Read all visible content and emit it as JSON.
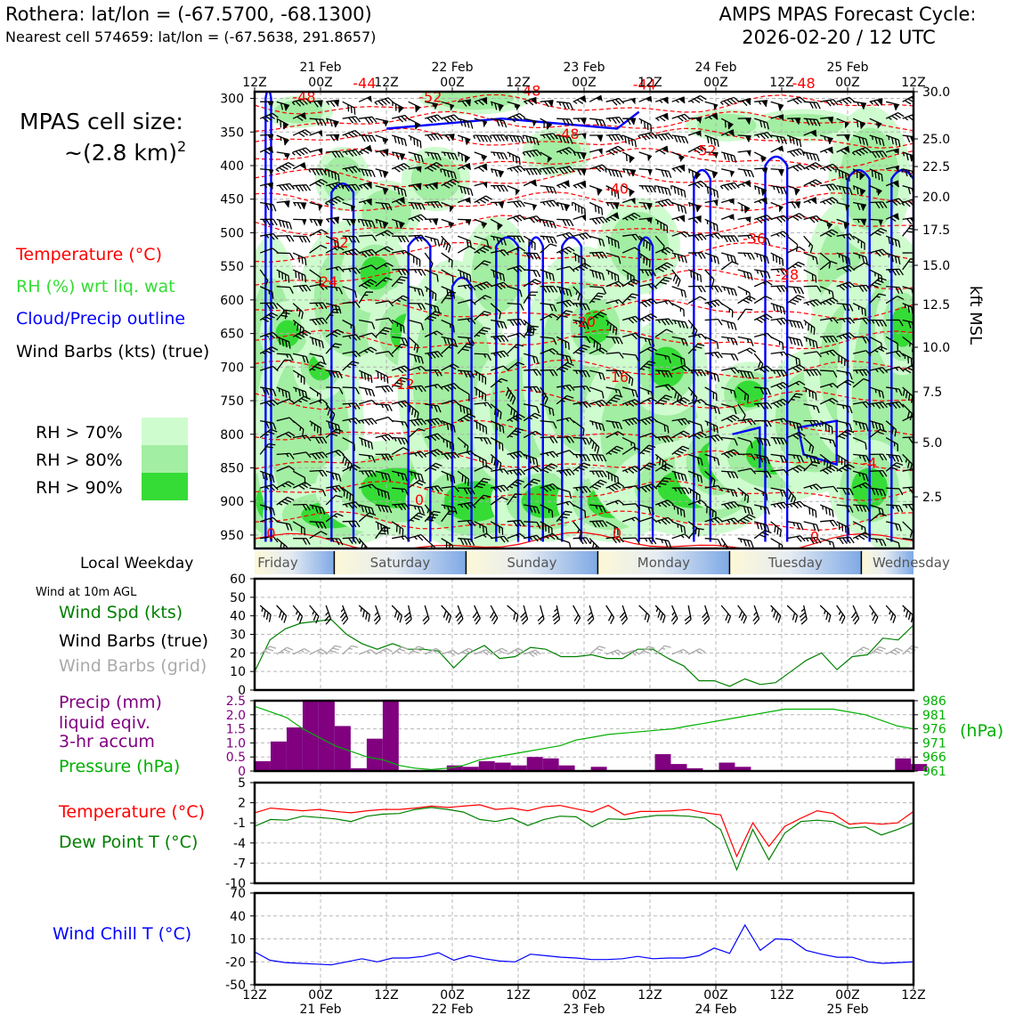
{
  "header": {
    "station_line": "Rothera: lat/lon = (-67.5700, -68.1300)",
    "cell_line": "Nearest cell 574659: lat/lon = (-67.5638, 291.8657)",
    "cycle_line1": "AMPS MPAS Forecast Cycle:",
    "cycle_line2": "2026-02-20 / 12 UTC"
  },
  "legend": {
    "cell_size_1": "MPAS cell size:",
    "cell_size_2": "~(2.8 km)",
    "cell_size_exp": "2",
    "temperature": "Temperature (°C)",
    "rh": "RH (%) wrt liq. wat",
    "cloud": "Cloud/Precip outline",
    "barbs": "Wind Barbs (kts) (true)",
    "rh70": "RH > 70%",
    "rh80": "RH > 80%",
    "rh90": "RH > 90%"
  },
  "colors": {
    "rh70": "#cffccf",
    "rh80": "#a2eea2",
    "rh90": "#36dc36",
    "temp": "#ff0000",
    "cloud": "#0000ff",
    "precip": "#800080",
    "pressure": "#00b000",
    "wind_spd": "#008000",
    "grid_barb": "#aaaaaa",
    "dew": "#008000",
    "chill": "#0000ff"
  },
  "time_axis": {
    "ticks": [
      "12Z",
      "00Z",
      "12Z",
      "00Z",
      "12Z",
      "00Z",
      "12Z",
      "00Z",
      "12Z",
      "00Z",
      "12Z"
    ],
    "dates": [
      "21 Feb",
      "22 Feb",
      "23 Feb",
      "24 Feb",
      "25 Feb"
    ]
  },
  "weekday": {
    "label": "Local Weekday",
    "days": [
      "Friday",
      "Saturday",
      "Sunday",
      "Monday",
      "Tuesday",
      "Wednesday"
    ]
  },
  "wind10m_label": "Wind at 10m AGL",
  "right_axis_label": "kft MSL",
  "pressure_unit": "(hPa)",
  "panel_labels": {
    "wind_spd": "Wind Spd (kts)",
    "wind_true": "Wind Barbs (true)",
    "wind_grid": "Wind Barbs (grid)",
    "precip1": "Precip (mm)",
    "precip2": "liquid eqiv.",
    "precip3": "3-hr accum",
    "pressure": "Pressure (hPa)",
    "temp": "Temperature (°C)",
    "dew": "Dew Point T (°C)",
    "chill": "Wind Chill T (°C)"
  },
  "chart_data": [
    {
      "type": "heatmap",
      "x_label": "",
      "y_ticks_hpa": [
        "300",
        "350",
        "400",
        "450",
        "500",
        "550",
        "600",
        "650",
        "700",
        "750",
        "800",
        "850",
        "900",
        "950"
      ],
      "right_ticks_kft": [
        "30.0",
        "25.0",
        "22.5",
        "20.0",
        "17.5",
        "15.0",
        "12.5",
        "10.0",
        "7.5",
        "5.0",
        "2.5"
      ],
      "temp_contour_labels": [
        "-48",
        "-44",
        "-52",
        "-48",
        "-48",
        "-48",
        "-52",
        "-44",
        "-40",
        "-36",
        "-32",
        "-28",
        "-24",
        "-20",
        "-16",
        "-12",
        "-4",
        "0",
        "0",
        "0",
        "0"
      ],
      "ylim": [
        300,
        970
      ],
      "xlim_hours": [
        0,
        120
      ]
    },
    {
      "type": "line",
      "series": [
        {
          "name": "Wind Spd (kts)",
          "values": [
            10,
            27,
            33,
            36,
            37,
            38,
            30,
            25,
            22,
            25,
            22,
            22,
            21,
            12,
            20,
            24,
            17,
            18,
            23,
            22,
            18,
            18,
            19,
            17,
            17,
            22,
            22,
            17,
            13,
            5,
            5,
            2,
            6,
            3,
            4,
            10,
            16,
            20,
            11,
            18,
            19,
            28,
            27,
            35
          ]
        }
      ],
      "y_ticks": [
        "0",
        "10",
        "20",
        "30",
        "40",
        "50",
        "60"
      ],
      "ylim": [
        0,
        60
      ]
    },
    {
      "type": "bar",
      "x_hours_step": 3,
      "values": [
        0.35,
        1.05,
        1.55,
        2.5,
        2.5,
        1.6,
        0.1,
        1.15,
        2.5,
        0,
        0,
        0,
        0.2,
        0.15,
        0.35,
        0.3,
        0.2,
        0.5,
        0.45,
        0.2,
        0,
        0.15,
        0,
        0,
        0,
        0.6,
        0.25,
        0.1,
        0,
        0.3,
        0.15,
        0,
        0,
        0,
        0,
        0,
        0,
        0,
        0,
        0,
        0.45,
        0.25
      ],
      "y_ticks": [
        "0",
        "0.5",
        "1.0",
        "1.5",
        "2.0",
        "2.5"
      ],
      "ylim": [
        0,
        2.5
      ],
      "pressure_ticks": [
        "961",
        "966",
        "971",
        "976",
        "981",
        "986"
      ],
      "pressure_values": [
        984,
        982,
        980,
        976,
        973,
        970,
        968,
        966,
        965,
        963,
        962,
        961.5,
        962,
        963,
        965,
        966,
        967,
        968,
        969,
        970,
        972,
        973,
        974,
        974.5,
        975,
        975.5,
        976,
        977,
        978,
        979,
        980,
        981,
        982,
        983,
        983,
        983,
        983,
        982,
        981,
        979,
        977,
        976
      ]
    },
    {
      "type": "line",
      "series": [
        {
          "name": "Temperature (°C)",
          "values": [
            0.5,
            1.2,
            1,
            0.8,
            1,
            0.7,
            0.5,
            0.8,
            1,
            1,
            1.2,
            1.5,
            1.3,
            1.5,
            1.7,
            1,
            1.2,
            0.8,
            1.4,
            1.6,
            1.1,
            0.6,
            1.6,
            0.2,
            0.7,
            0.7,
            0.8,
            1,
            0.5,
            0.2,
            -6,
            -1,
            -4.5,
            -1.5,
            -0.3,
            0.8,
            0.4,
            -1.2,
            -1,
            -1.2,
            -1,
            0.7
          ]
        },
        {
          "name": "Dew Point T (°C)",
          "values": [
            -1.5,
            -0.5,
            -0.6,
            0,
            -0.2,
            -0.4,
            -0.8,
            0,
            0.3,
            0.4,
            1,
            1.3,
            1,
            0.6,
            -0.5,
            -0.8,
            -0.3,
            -1.4,
            -0.5,
            0,
            -0.1,
            -1.6,
            -0.4,
            -0.5,
            -0.2,
            0.1,
            0.1,
            0,
            -0.3,
            -2,
            -8,
            -2,
            -6.5,
            -2.5,
            -0.8,
            -0.6,
            -0.8,
            -1.8,
            -1.6,
            -2.8,
            -2,
            -1
          ]
        }
      ],
      "y_ticks": [
        "5",
        "2",
        "-1",
        "-4",
        "-7",
        "-10"
      ],
      "ylim": [
        -10,
        5
      ]
    },
    {
      "type": "line",
      "series": [
        {
          "name": "Wind Chill T (°C)",
          "values": [
            -7,
            -18,
            -21,
            -22,
            -23,
            -24,
            -20,
            -16,
            -20,
            -15,
            -15,
            -13,
            -8,
            -18,
            -12,
            -16,
            -19,
            -20,
            -10,
            -12,
            -14,
            -15,
            -17,
            -17,
            -16,
            -13,
            -16,
            -15,
            -15,
            -12,
            -2,
            -9,
            28,
            -5,
            10,
            9,
            -5,
            -10,
            -14,
            -14,
            -20,
            -22,
            -21,
            -20
          ]
        }
      ],
      "y_ticks": [
        "70",
        "40",
        "10",
        "-20",
        "-50"
      ],
      "ylim": [
        -50,
        70
      ]
    }
  ]
}
